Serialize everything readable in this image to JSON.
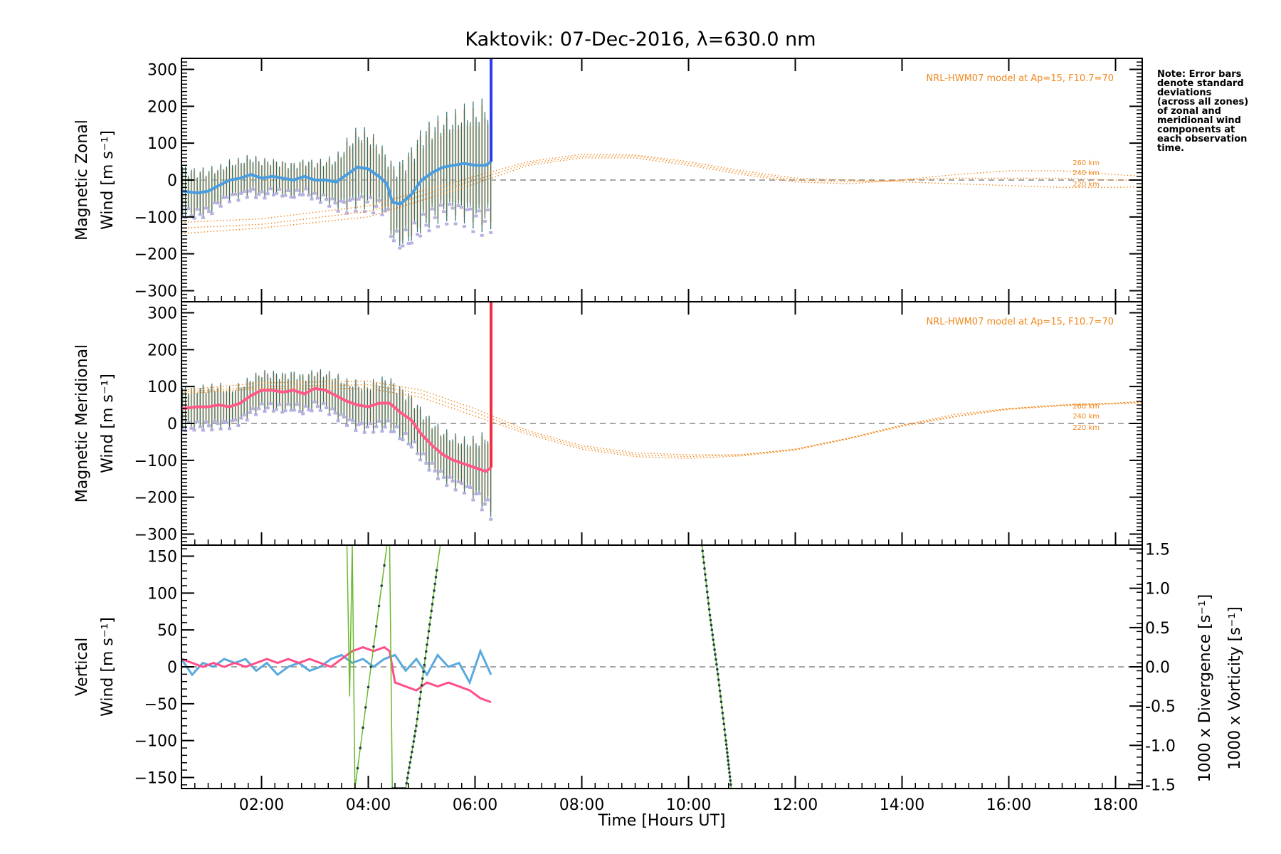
{
  "title": "Kaktovik: 07-Dec-2016, λ=630.0 nm",
  "note_lines": [
    "Note: Error bars",
    "denote standard",
    "deviations",
    "(across all zones)",
    "of zonal and",
    "meridional wind",
    "components at",
    "each observation",
    "time."
  ],
  "colors": {
    "zonal": "#2b3cf0",
    "zonal_mean": "#4a9ee0",
    "meridional": "#f03040",
    "meridional_mean": "#ff5a8a",
    "model": "#f08a20",
    "vertical": "#6ab82e",
    "divergence": "#5aa9dd",
    "vorticity": "#ff4f88",
    "errorbar": "#2e6b6b",
    "scatter": "#b8b0e0",
    "zero": "#888888"
  },
  "chart_data": [
    {
      "type": "line",
      "panel": "zonal",
      "ylabel_line1": "Magnetic Zonal",
      "ylabel_line2": "Wind [m s⁻¹]",
      "ylim": [
        -330,
        330
      ],
      "xlim": [
        0.5,
        18.5
      ],
      "yticks": [
        -300,
        -200,
        -100,
        0,
        100,
        200,
        300
      ],
      "model_label": "NRL-HWM07 model at Ap=15, F10.7=70",
      "altitude_labels": [
        "260 km",
        "240 km",
        "220 km"
      ],
      "observed_end_time": 6.3,
      "series": [
        {
          "name": "observed",
          "x": [
            0.5,
            0.8,
            1.0,
            1.2,
            1.4,
            1.6,
            1.8,
            2.0,
            2.2,
            2.4,
            2.6,
            2.8,
            3.0,
            3.2,
            3.4,
            3.6,
            3.8,
            4.0,
            4.2,
            4.35,
            4.45,
            4.6,
            4.8,
            5.0,
            5.2,
            5.4,
            5.6,
            5.8,
            6.0,
            6.2,
            6.3
          ],
          "y": [
            -30,
            -35,
            -30,
            -15,
            0,
            5,
            15,
            5,
            10,
            5,
            0,
            10,
            0,
            0,
            -5,
            15,
            35,
            30,
            10,
            -10,
            -60,
            -65,
            -40,
            0,
            20,
            35,
            40,
            45,
            40,
            40,
            50
          ],
          "err": [
            60,
            55,
            55,
            45,
            45,
            45,
            45,
            45,
            40,
            40,
            40,
            40,
            45,
            50,
            60,
            80,
            90,
            90,
            80,
            70,
            90,
            100,
            110,
            120,
            120,
            120,
            120,
            130,
            140,
            150,
            150
          ]
        }
      ],
      "model": [
        {
          "name": "260 km",
          "x": [
            0.5,
            2,
            4,
            6,
            7,
            8,
            9,
            10,
            11,
            12,
            13,
            14,
            15,
            16,
            17,
            18,
            18.5
          ],
          "y": [
            -145,
            -130,
            -100,
            -10,
            40,
            60,
            60,
            40,
            15,
            -5,
            -10,
            0,
            15,
            25,
            25,
            15,
            10
          ]
        },
        {
          "name": "240 km",
          "x": [
            0.5,
            2,
            4,
            6,
            7,
            8,
            9,
            10,
            11,
            12,
            13,
            14,
            15,
            16,
            17,
            18,
            18.5
          ],
          "y": [
            -130,
            -120,
            -85,
            0,
            45,
            65,
            65,
            45,
            20,
            0,
            -5,
            0,
            5,
            5,
            5,
            0,
            0
          ]
        },
        {
          "name": "220 km",
          "x": [
            0.5,
            2,
            4,
            6,
            7,
            8,
            9,
            10,
            11,
            12,
            13,
            14,
            15,
            16,
            17,
            18,
            18.5
          ],
          "y": [
            -115,
            -105,
            -70,
            10,
            50,
            70,
            68,
            50,
            25,
            5,
            0,
            -5,
            -10,
            -15,
            -20,
            -20,
            -18
          ]
        }
      ]
    },
    {
      "type": "line",
      "panel": "meridional",
      "ylabel_line1": "Magnetic Meridional",
      "ylabel_line2": "Wind [m s⁻¹]",
      "ylim": [
        -330,
        330
      ],
      "xlim": [
        0.5,
        18.5
      ],
      "yticks": [
        -300,
        -200,
        -100,
        0,
        100,
        200,
        300
      ],
      "model_label": "NRL-HWM07 model at Ap=15, F10.7=70",
      "altitude_labels": [
        "260 km",
        "240 km",
        "220 km"
      ],
      "observed_end_time": 6.3,
      "series": [
        {
          "name": "observed",
          "x": [
            0.5,
            0.8,
            1.0,
            1.2,
            1.4,
            1.6,
            1.8,
            2.0,
            2.2,
            2.4,
            2.6,
            2.8,
            3.0,
            3.2,
            3.4,
            3.6,
            3.8,
            4.0,
            4.2,
            4.4,
            4.6,
            4.8,
            5.0,
            5.2,
            5.4,
            5.6,
            5.8,
            6.0,
            6.2,
            6.3
          ],
          "y": [
            40,
            45,
            45,
            50,
            45,
            55,
            75,
            90,
            90,
            85,
            90,
            80,
            95,
            90,
            75,
            60,
            50,
            45,
            55,
            55,
            30,
            10,
            -30,
            -60,
            -85,
            -100,
            -110,
            -120,
            -130,
            -120
          ],
          "err": [
            50,
            50,
            50,
            50,
            45,
            45,
            45,
            45,
            45,
            45,
            45,
            45,
            45,
            45,
            50,
            50,
            55,
            55,
            60,
            60,
            60,
            60,
            60,
            60,
            60,
            60,
            60,
            70,
            90,
            110
          ]
        }
      ],
      "model": [
        {
          "name": "260 km",
          "x": [
            0.5,
            2,
            4,
            5,
            6,
            7,
            8,
            9,
            10,
            11,
            12,
            13,
            14,
            15,
            16,
            17,
            18,
            18.5
          ],
          "y": [
            90,
            110,
            115,
            90,
            40,
            -20,
            -60,
            -80,
            -85,
            -85,
            -70,
            -40,
            -5,
            25,
            40,
            50,
            55,
            60
          ]
        },
        {
          "name": "240 km",
          "x": [
            0.5,
            2,
            4,
            5,
            6,
            7,
            8,
            9,
            10,
            11,
            12,
            13,
            14,
            15,
            16,
            17,
            18,
            18.5
          ],
          "y": [
            85,
            100,
            105,
            80,
            30,
            -25,
            -65,
            -85,
            -90,
            -85,
            -70,
            -40,
            -5,
            20,
            40,
            50,
            55,
            58
          ]
        },
        {
          "name": "220 km",
          "x": [
            0.5,
            2,
            4,
            5,
            6,
            7,
            8,
            9,
            10,
            11,
            12,
            13,
            14,
            15,
            16,
            17,
            18,
            18.5
          ],
          "y": [
            80,
            95,
            95,
            70,
            20,
            -30,
            -70,
            -90,
            -95,
            -88,
            -72,
            -42,
            -8,
            18,
            38,
            48,
            53,
            56
          ]
        }
      ]
    },
    {
      "type": "line",
      "panel": "vertical",
      "ylabel_line1": "Vertical",
      "ylabel_line2": "Wind [m s⁻¹]",
      "y2label_1": "1000 x Divergence [s⁻¹]",
      "y2label_2": "1000 x Vorticity [s⁻¹]",
      "xlabel": "Time [Hours UT]",
      "ylim": [
        -165,
        165
      ],
      "y2lim": [
        -1.55,
        1.55
      ],
      "xlim": [
        0.5,
        18.5
      ],
      "yticks": [
        -150,
        -100,
        -50,
        0,
        50,
        100,
        150
      ],
      "y2ticks": [
        -1.5,
        -1.0,
        -0.5,
        0.0,
        0.5,
        1.0,
        1.5
      ],
      "y2tick_labels": [
        "-1.5",
        "-1.0",
        "-0.5",
        "0.0",
        "0.5",
        "1.0",
        "1.5"
      ],
      "xticks": [
        2,
        4,
        6,
        8,
        10,
        12,
        14,
        16,
        18
      ],
      "xtick_labels": [
        "02:00",
        "04:00",
        "06:00",
        "08:00",
        "10:00",
        "12:00",
        "14:00",
        "16:00",
        "18:00"
      ],
      "series": [
        {
          "name": "divergence",
          "axis": "y2",
          "x": [
            0.5,
            0.7,
            0.9,
            1.1,
            1.3,
            1.5,
            1.7,
            1.9,
            2.1,
            2.3,
            2.5,
            2.7,
            2.9,
            3.1,
            3.3,
            3.5,
            3.7,
            3.9,
            4.1,
            4.3,
            4.5,
            4.7,
            4.9,
            5.1,
            5.3,
            5.5,
            5.7,
            5.9,
            6.1,
            6.3
          ],
          "y": [
            0.1,
            -0.1,
            0.05,
            0.0,
            0.1,
            0.05,
            0.1,
            -0.05,
            0.05,
            -0.1,
            0.0,
            0.05,
            -0.05,
            0.0,
            0.1,
            0.15,
            0.05,
            0.1,
            0.0,
            0.1,
            0.15,
            -0.05,
            0.1,
            -0.1,
            0.15,
            0.0,
            0.05,
            -0.2,
            0.2,
            -0.1
          ]
        },
        {
          "name": "vorticity",
          "axis": "y2",
          "x": [
            0.5,
            0.7,
            0.9,
            1.1,
            1.3,
            1.5,
            1.7,
            1.9,
            2.1,
            2.3,
            2.5,
            2.7,
            2.9,
            3.1,
            3.3,
            3.5,
            3.7,
            3.9,
            4.1,
            4.3,
            4.4,
            4.5,
            4.7,
            4.9,
            5.1,
            5.3,
            5.5,
            5.7,
            5.9,
            6.1,
            6.3
          ],
          "y": [
            0.1,
            0.05,
            0.0,
            0.05,
            0.0,
            0.05,
            0.0,
            0.05,
            0.1,
            0.05,
            0.1,
            0.05,
            0.1,
            0.05,
            0.0,
            0.1,
            0.2,
            0.25,
            0.2,
            0.25,
            0.2,
            -0.2,
            -0.25,
            -0.3,
            -0.2,
            -0.25,
            -0.2,
            -0.25,
            -0.3,
            -0.4,
            -0.45
          ]
        },
        {
          "name": "vertical",
          "axis": "y",
          "x": [
            3.6,
            3.65,
            3.7,
            3.75,
            4.35,
            4.4,
            4.45,
            4.7,
            4.9,
            5.1,
            5.3,
            5.35
          ],
          "y": [
            165,
            -40,
            165,
            -165,
            165,
            165,
            -165,
            -165,
            -80,
            30,
            140,
            165
          ]
        },
        {
          "name": "vertical-late",
          "axis": "y",
          "x": [
            10.25,
            10.4,
            10.55,
            10.7,
            10.8
          ],
          "y": [
            165,
            70,
            -10,
            -100,
            -165
          ]
        }
      ]
    }
  ]
}
